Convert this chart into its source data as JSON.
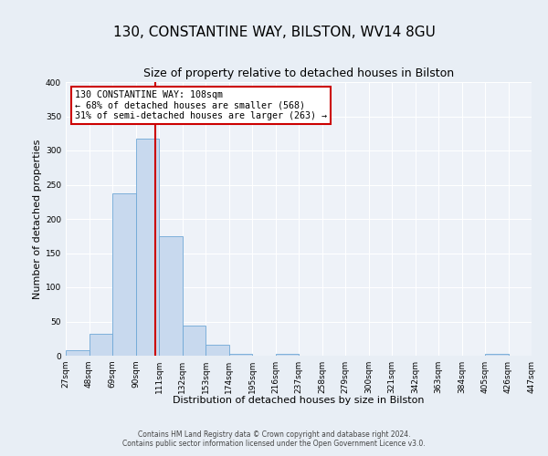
{
  "title": "130, CONSTANTINE WAY, BILSTON, WV14 8GU",
  "subtitle": "Size of property relative to detached houses in Bilston",
  "xlabel": "Distribution of detached houses by size in Bilston",
  "ylabel": "Number of detached properties",
  "bin_edges": [
    27,
    48,
    69,
    90,
    111,
    132,
    153,
    174,
    195,
    216,
    237,
    258,
    279,
    300,
    321,
    342,
    363,
    384,
    405,
    426,
    447
  ],
  "bar_heights": [
    8,
    32,
    238,
    318,
    175,
    44,
    16,
    3,
    0,
    3,
    0,
    0,
    0,
    0,
    0,
    0,
    0,
    0,
    3,
    0,
    2
  ],
  "bar_color": "#c8d9ee",
  "bar_edgecolor": "#6fa8d6",
  "property_size": 108,
  "vline_color": "#cc0000",
  "annotation_line1": "130 CONSTANTINE WAY: 108sqm",
  "annotation_line2": "← 68% of detached houses are smaller (568)",
  "annotation_line3": "31% of semi-detached houses are larger (263) →",
  "annotation_box_edgecolor": "#cc0000",
  "ylim": [
    0,
    400
  ],
  "yticks": [
    0,
    50,
    100,
    150,
    200,
    250,
    300,
    350,
    400
  ],
  "footer_line1": "Contains HM Land Registry data © Crown copyright and database right 2024.",
  "footer_line2": "Contains public sector information licensed under the Open Government Licence v3.0.",
  "background_color": "#e8eef5",
  "plot_background": "#eef2f8",
  "grid_color": "#ffffff",
  "title_fontsize": 11,
  "subtitle_fontsize": 9,
  "xlabel_fontsize": 8,
  "ylabel_fontsize": 8,
  "tick_fontsize": 6.5,
  "footer_fontsize": 5.5
}
